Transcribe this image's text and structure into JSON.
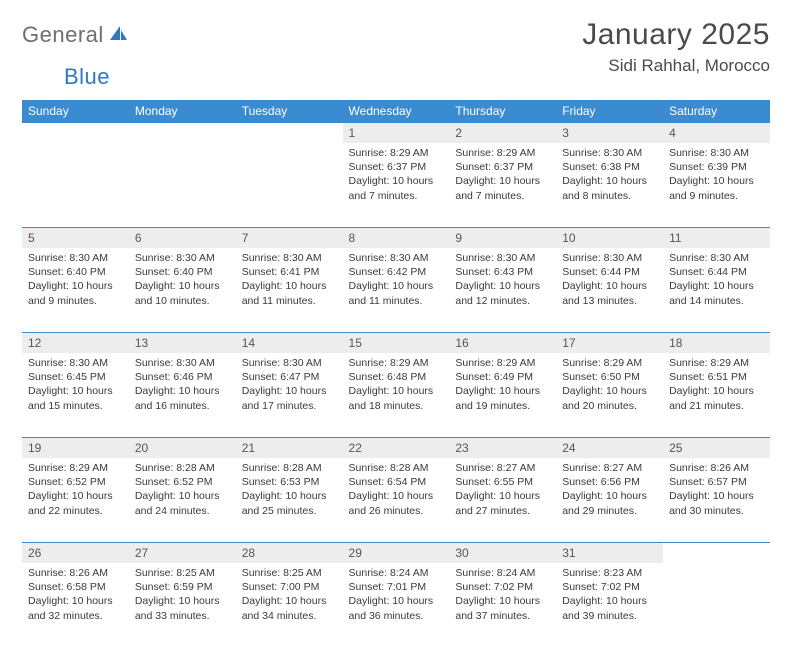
{
  "logo": {
    "part1": "General",
    "part2": "Blue"
  },
  "title": "January 2025",
  "location": "Sidi Rahhal, Morocco",
  "colors": {
    "header_bg": "#3b8bd0",
    "header_text": "#ffffff",
    "daynum_bg": "#ededed",
    "rule": "#3b8bd0",
    "logo_gray": "#6e6e6e",
    "logo_blue": "#2f78c2",
    "body_text": "#3a3a3a"
  },
  "weekdays": [
    "Sunday",
    "Monday",
    "Tuesday",
    "Wednesday",
    "Thursday",
    "Friday",
    "Saturday"
  ],
  "first_weekday_index": 3,
  "days": [
    {
      "n": 1,
      "sunrise": "8:29 AM",
      "sunset": "6:37 PM",
      "daylight": "10 hours and 7 minutes."
    },
    {
      "n": 2,
      "sunrise": "8:29 AM",
      "sunset": "6:37 PM",
      "daylight": "10 hours and 7 minutes."
    },
    {
      "n": 3,
      "sunrise": "8:30 AM",
      "sunset": "6:38 PM",
      "daylight": "10 hours and 8 minutes."
    },
    {
      "n": 4,
      "sunrise": "8:30 AM",
      "sunset": "6:39 PM",
      "daylight": "10 hours and 9 minutes."
    },
    {
      "n": 5,
      "sunrise": "8:30 AM",
      "sunset": "6:40 PM",
      "daylight": "10 hours and 9 minutes."
    },
    {
      "n": 6,
      "sunrise": "8:30 AM",
      "sunset": "6:40 PM",
      "daylight": "10 hours and 10 minutes."
    },
    {
      "n": 7,
      "sunrise": "8:30 AM",
      "sunset": "6:41 PM",
      "daylight": "10 hours and 11 minutes."
    },
    {
      "n": 8,
      "sunrise": "8:30 AM",
      "sunset": "6:42 PM",
      "daylight": "10 hours and 11 minutes."
    },
    {
      "n": 9,
      "sunrise": "8:30 AM",
      "sunset": "6:43 PM",
      "daylight": "10 hours and 12 minutes."
    },
    {
      "n": 10,
      "sunrise": "8:30 AM",
      "sunset": "6:44 PM",
      "daylight": "10 hours and 13 minutes."
    },
    {
      "n": 11,
      "sunrise": "8:30 AM",
      "sunset": "6:44 PM",
      "daylight": "10 hours and 14 minutes."
    },
    {
      "n": 12,
      "sunrise": "8:30 AM",
      "sunset": "6:45 PM",
      "daylight": "10 hours and 15 minutes."
    },
    {
      "n": 13,
      "sunrise": "8:30 AM",
      "sunset": "6:46 PM",
      "daylight": "10 hours and 16 minutes."
    },
    {
      "n": 14,
      "sunrise": "8:30 AM",
      "sunset": "6:47 PM",
      "daylight": "10 hours and 17 minutes."
    },
    {
      "n": 15,
      "sunrise": "8:29 AM",
      "sunset": "6:48 PM",
      "daylight": "10 hours and 18 minutes."
    },
    {
      "n": 16,
      "sunrise": "8:29 AM",
      "sunset": "6:49 PM",
      "daylight": "10 hours and 19 minutes."
    },
    {
      "n": 17,
      "sunrise": "8:29 AM",
      "sunset": "6:50 PM",
      "daylight": "10 hours and 20 minutes."
    },
    {
      "n": 18,
      "sunrise": "8:29 AM",
      "sunset": "6:51 PM",
      "daylight": "10 hours and 21 minutes."
    },
    {
      "n": 19,
      "sunrise": "8:29 AM",
      "sunset": "6:52 PM",
      "daylight": "10 hours and 22 minutes."
    },
    {
      "n": 20,
      "sunrise": "8:28 AM",
      "sunset": "6:52 PM",
      "daylight": "10 hours and 24 minutes."
    },
    {
      "n": 21,
      "sunrise": "8:28 AM",
      "sunset": "6:53 PM",
      "daylight": "10 hours and 25 minutes."
    },
    {
      "n": 22,
      "sunrise": "8:28 AM",
      "sunset": "6:54 PM",
      "daylight": "10 hours and 26 minutes."
    },
    {
      "n": 23,
      "sunrise": "8:27 AM",
      "sunset": "6:55 PM",
      "daylight": "10 hours and 27 minutes."
    },
    {
      "n": 24,
      "sunrise": "8:27 AM",
      "sunset": "6:56 PM",
      "daylight": "10 hours and 29 minutes."
    },
    {
      "n": 25,
      "sunrise": "8:26 AM",
      "sunset": "6:57 PM",
      "daylight": "10 hours and 30 minutes."
    },
    {
      "n": 26,
      "sunrise": "8:26 AM",
      "sunset": "6:58 PM",
      "daylight": "10 hours and 32 minutes."
    },
    {
      "n": 27,
      "sunrise": "8:25 AM",
      "sunset": "6:59 PM",
      "daylight": "10 hours and 33 minutes."
    },
    {
      "n": 28,
      "sunrise": "8:25 AM",
      "sunset": "7:00 PM",
      "daylight": "10 hours and 34 minutes."
    },
    {
      "n": 29,
      "sunrise": "8:24 AM",
      "sunset": "7:01 PM",
      "daylight": "10 hours and 36 minutes."
    },
    {
      "n": 30,
      "sunrise": "8:24 AM",
      "sunset": "7:02 PM",
      "daylight": "10 hours and 37 minutes."
    },
    {
      "n": 31,
      "sunrise": "8:23 AM",
      "sunset": "7:02 PM",
      "daylight": "10 hours and 39 minutes."
    }
  ],
  "labels": {
    "sunrise": "Sunrise:",
    "sunset": "Sunset:",
    "daylight": "Daylight:"
  }
}
